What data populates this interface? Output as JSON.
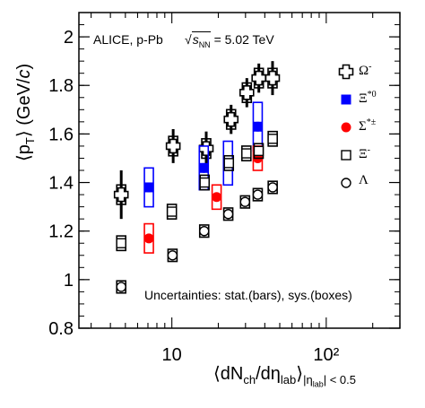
{
  "annotations": {
    "collab": "ALICE, p-Pb",
    "energy": "= 5.02 TeV",
    "energy_symbol": "s",
    "energy_sub": "NN",
    "uncertainties": "Uncertainties: stat.(bars), sys.(boxes)"
  },
  "axes_text": {
    "y_pre": "⟨p",
    "y_sub": "T",
    "y_post": "⟩ (GeV/",
    "y_c": "c",
    "y_close": ")",
    "x_pre": "⟨dN",
    "x_sub1": "ch",
    "x_mid": "/dη",
    "x_sub2": "lab",
    "x_post": "⟩",
    "x_cond": "|η",
    "x_cond_sub": "lab",
    "x_cond_post": "| < 0.5"
  },
  "colors": {
    "omega": "#000000",
    "xi_star0": "#0000ff",
    "sigma_star": "#ff0000",
    "xi": "#000000",
    "lambda": "#000000"
  },
  "chart_data": {
    "type": "scatter",
    "x_scale": "log",
    "xlim": [
      2.5,
      300
    ],
    "ylim": [
      0.8,
      2.1
    ],
    "x_ticks": [
      10,
      100
    ],
    "x_tick_labels": [
      "10",
      "10²"
    ],
    "y_ticks": [
      0.8,
      1.0,
      1.2,
      1.4,
      1.6,
      1.8,
      2.0
    ],
    "y_tick_labels": [
      "0.8",
      "1",
      "1.2",
      "1.4",
      "1.6",
      "1.8",
      "2"
    ],
    "legend_position": "right",
    "series": [
      {
        "name": "Ω⁻",
        "key": "omega",
        "marker": "open-cross",
        "x": [
          4.7,
          10.2,
          16.7,
          24.2,
          30.6,
          36.6,
          44.9
        ],
        "y": [
          1.35,
          1.55,
          1.54,
          1.66,
          1.77,
          1.83,
          1.83
        ],
        "stat": [
          0.1,
          0.07,
          0.07,
          0.06,
          0.06,
          0.06,
          0.07
        ],
        "sys": [
          0.04,
          0.04,
          0.04,
          0.04,
          0.04,
          0.04,
          0.04
        ]
      },
      {
        "name": "Ξ*0",
        "key": "xi_star0",
        "marker": "filled-square",
        "x": [
          7.1,
          16.1,
          23.1,
          36.0
        ],
        "y": [
          1.38,
          1.46,
          1.48,
          1.63
        ],
        "stat": [
          0.02,
          0.02,
          0.02,
          0.02
        ],
        "sys": [
          0.08,
          0.09,
          0.09,
          0.1
        ]
      },
      {
        "name": "Σ*±",
        "key": "sigma_star",
        "marker": "filled-circle",
        "x": [
          7.1,
          19.5,
          36.0
        ],
        "y": [
          1.17,
          1.34,
          1.5
        ],
        "stat": [
          0.01,
          0.01,
          0.01
        ],
        "sys": [
          0.06,
          0.05,
          0.05
        ]
      },
      {
        "name": "Ξ⁻",
        "key": "xi",
        "marker": "open-square",
        "x": [
          4.7,
          10.0,
          16.3,
          23.4,
          30.4,
          36.5,
          45.0
        ],
        "y": [
          1.15,
          1.28,
          1.4,
          1.48,
          1.52,
          1.53,
          1.58
        ],
        "stat": [
          0.01,
          0.01,
          0.01,
          0.01,
          0.01,
          0.01,
          0.01
        ],
        "sys": [
          0.03,
          0.03,
          0.03,
          0.03,
          0.03,
          0.03,
          0.03
        ]
      },
      {
        "name": "Λ",
        "key": "lambda",
        "marker": "open-circle",
        "x": [
          4.7,
          10.1,
          16.2,
          23.2,
          29.8,
          36.0,
          45.0
        ],
        "y": [
          0.97,
          1.1,
          1.2,
          1.27,
          1.32,
          1.35,
          1.38
        ],
        "stat": [
          0.005,
          0.005,
          0.005,
          0.005,
          0.005,
          0.005,
          0.005
        ],
        "sys": [
          0.025,
          0.025,
          0.025,
          0.025,
          0.025,
          0.025,
          0.025
        ]
      }
    ],
    "legend_labels": {
      "omega": {
        "base": "Ω",
        "sup": "-"
      },
      "xi_star0": {
        "base": "Ξ",
        "sup": "*0"
      },
      "sigma_star": {
        "base": "Σ",
        "sup": "*±"
      },
      "xi": {
        "base": "Ξ",
        "sup": "-"
      },
      "lambda": {
        "base": "Λ",
        "sup": ""
      }
    }
  }
}
